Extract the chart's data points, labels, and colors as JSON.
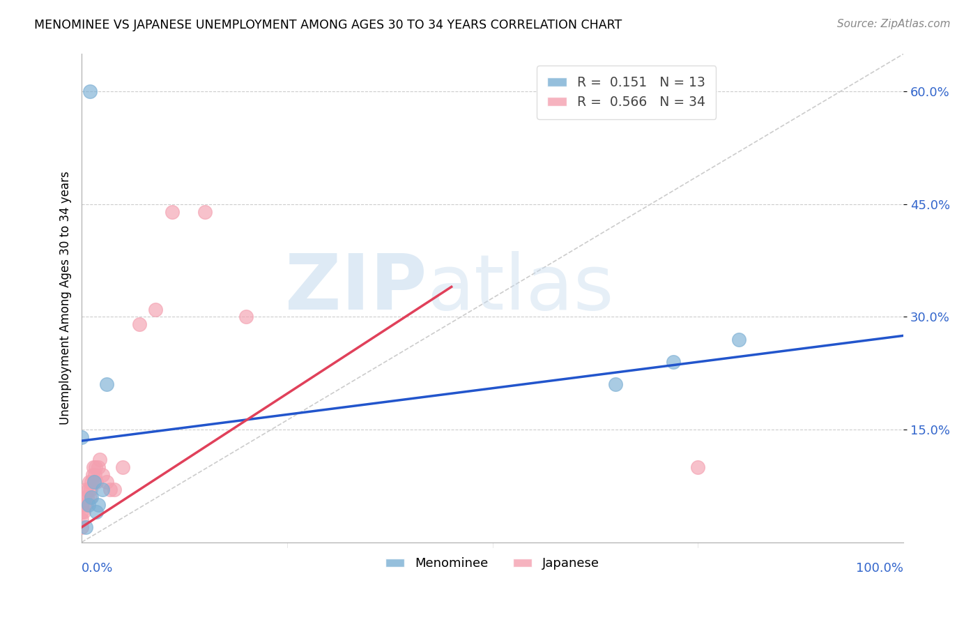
{
  "title": "MENOMINEE VS JAPANESE UNEMPLOYMENT AMONG AGES 30 TO 34 YEARS CORRELATION CHART",
  "source": "Source: ZipAtlas.com",
  "ylabel": "Unemployment Among Ages 30 to 34 years",
  "ytick_labels": [
    "15.0%",
    "30.0%",
    "45.0%",
    "60.0%"
  ],
  "ytick_values": [
    0.15,
    0.3,
    0.45,
    0.6
  ],
  "xlim": [
    0.0,
    1.0
  ],
  "ylim": [
    0.0,
    0.65
  ],
  "legend_blue_r": "0.151",
  "legend_blue_n": "13",
  "legend_pink_r": "0.566",
  "legend_pink_n": "34",
  "menominee_color": "#7BAFD4",
  "japanese_color": "#F4A0B0",
  "trendline_blue": "#2255CC",
  "trendline_pink": "#E0405A",
  "diagonal_color": "#CCCCCC",
  "grid_color": "#CCCCCC",
  "menominee_x": [
    0.01,
    0.0,
    0.005,
    0.008,
    0.012,
    0.015,
    0.018,
    0.02,
    0.025,
    0.03,
    0.65,
    0.72,
    0.8
  ],
  "menominee_y": [
    0.6,
    0.14,
    0.02,
    0.05,
    0.06,
    0.08,
    0.04,
    0.05,
    0.07,
    0.21,
    0.21,
    0.24,
    0.27
  ],
  "japanese_x": [
    0.0,
    0.0,
    0.0,
    0.0,
    0.002,
    0.003,
    0.004,
    0.005,
    0.006,
    0.007,
    0.008,
    0.009,
    0.01,
    0.011,
    0.012,
    0.013,
    0.014,
    0.015,
    0.016,
    0.017,
    0.018,
    0.02,
    0.022,
    0.025,
    0.03,
    0.035,
    0.04,
    0.05,
    0.07,
    0.09,
    0.11,
    0.15,
    0.2,
    0.75
  ],
  "japanese_y": [
    0.02,
    0.03,
    0.04,
    0.05,
    0.04,
    0.05,
    0.06,
    0.07,
    0.05,
    0.06,
    0.07,
    0.08,
    0.06,
    0.07,
    0.08,
    0.09,
    0.1,
    0.08,
    0.09,
    0.1,
    0.08,
    0.1,
    0.11,
    0.09,
    0.08,
    0.07,
    0.07,
    0.1,
    0.29,
    0.31,
    0.44,
    0.44,
    0.3,
    0.1
  ],
  "blue_trend_x0": 0.0,
  "blue_trend_x1": 1.0,
  "blue_trend_y0": 0.135,
  "blue_trend_y1": 0.275,
  "pink_trend_x0": 0.0,
  "pink_trend_x1": 0.45,
  "pink_trend_y0": 0.02,
  "pink_trend_y1": 0.34
}
